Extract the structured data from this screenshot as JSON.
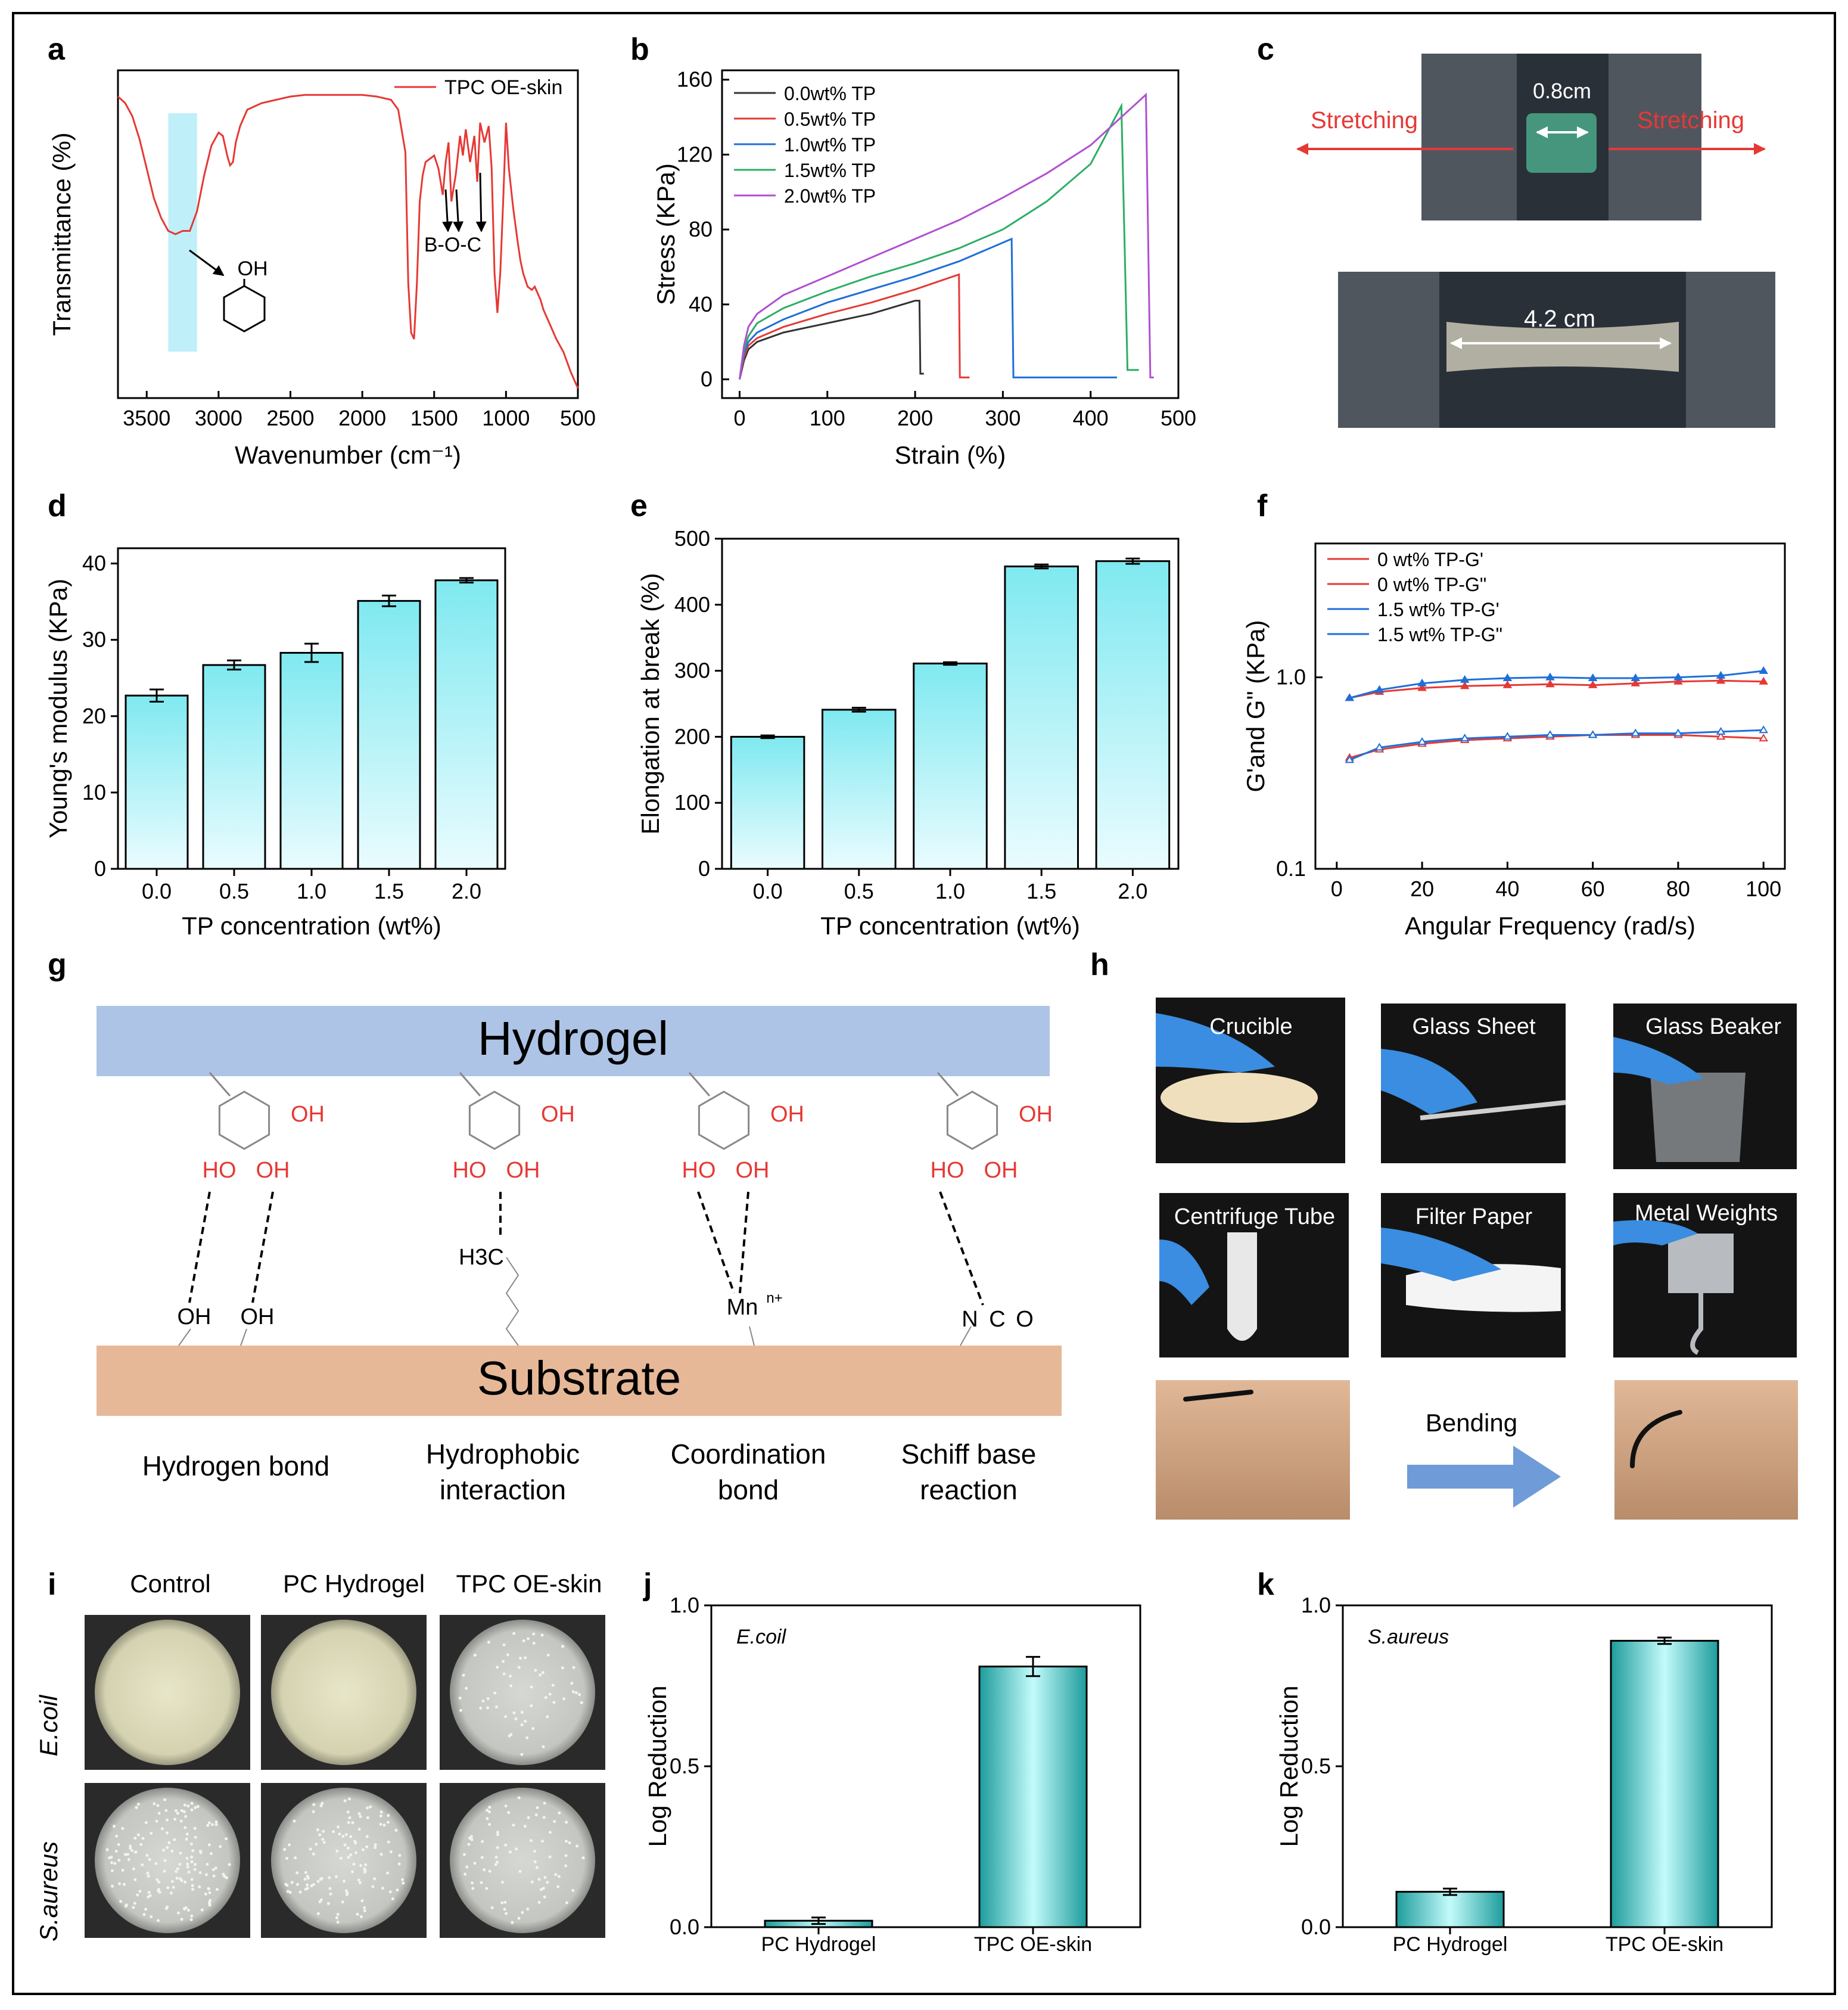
{
  "panel_labels": [
    "a",
    "b",
    "c",
    "d",
    "e",
    "f",
    "g",
    "h",
    "i",
    "j",
    "k"
  ],
  "colors": {
    "red": "#e53935",
    "black": "#333333",
    "blue": "#1e6fd9",
    "green": "#2bae66",
    "purple": "#b04fd0",
    "cyan_light": "#e6fbff",
    "cyan_dark": "#7fe9f0",
    "shade": "#bfeff8",
    "hydrogel": "#aec4e6",
    "substrate": "#e7b898",
    "teal_light": "#b9f7f7",
    "teal_dark": "#1e9c9c",
    "arrow": "#6f9bd8"
  },
  "chart_data": [
    {
      "id": "a",
      "type": "line",
      "xlabel": "Wavenumber (cm⁻¹)",
      "ylabel": "Transmittance (%)",
      "xlim": [
        3700,
        500
      ],
      "xticks": [
        "3500",
        "3000",
        "2500",
        "2000",
        "1500",
        "1000",
        "500"
      ],
      "legend": "TPC OE-skin",
      "series": [
        {
          "name": "TPC OE-skin",
          "x": [
            3700,
            3650,
            3600,
            3550,
            3500,
            3450,
            3400,
            3350,
            3300,
            3250,
            3200,
            3150,
            3100,
            3050,
            3000,
            2970,
            2940,
            2920,
            2900,
            2880,
            2850,
            2800,
            2700,
            2600,
            2500,
            2400,
            2300,
            2200,
            2100,
            2000,
            1900,
            1800,
            1750,
            1700,
            1680,
            1660,
            1640,
            1620,
            1600,
            1580,
            1560,
            1500,
            1470,
            1440,
            1420,
            1400,
            1380,
            1350,
            1320,
            1300,
            1280,
            1250,
            1220,
            1200,
            1180,
            1150,
            1120,
            1100,
            1080,
            1060,
            1040,
            1020,
            1000,
            980,
            950,
            920,
            900,
            880,
            850,
            820,
            800,
            780,
            760,
            740,
            700,
            650,
            600,
            550,
            500
          ],
          "y": [
            92,
            90,
            86,
            79,
            70,
            61,
            55,
            51,
            50,
            51,
            51,
            57,
            68,
            77,
            81,
            80,
            74,
            71,
            72,
            78,
            83,
            88,
            90,
            91,
            92,
            92.5,
            92.5,
            92.5,
            92.5,
            92.5,
            92,
            91,
            88,
            75,
            35,
            20,
            18,
            35,
            60,
            68,
            72,
            74,
            70,
            62,
            72,
            78,
            60,
            68,
            80,
            74,
            82,
            72,
            80,
            66,
            84,
            78,
            83,
            70,
            38,
            26,
            38,
            60,
            84,
            70,
            58,
            48,
            42,
            38,
            34,
            33,
            34,
            32,
            30,
            27,
            23,
            18,
            14,
            8,
            3
          ]
        }
      ],
      "annotations": [
        "OH",
        "B-O-C"
      ],
      "shaded_band": [
        3350,
        3150
      ]
    },
    {
      "id": "b",
      "type": "line",
      "xlabel": "Strain (%)",
      "ylabel": "Stress (KPa)",
      "xlim": [
        -20,
        500
      ],
      "ylim": [
        -10,
        165
      ],
      "xticks": [
        "0",
        "100",
        "200",
        "300",
        "400",
        "500"
      ],
      "yticks": [
        "0",
        "40",
        "80",
        "120",
        "160"
      ],
      "series": [
        {
          "name": "0.0wt% TP",
          "x": [
            0,
            5,
            10,
            20,
            50,
            100,
            150,
            200,
            205,
            206,
            210
          ],
          "y": [
            0,
            10,
            16,
            20,
            25,
            30,
            35,
            42,
            42,
            3,
            3
          ]
        },
        {
          "name": "0.5wt% TP",
          "x": [
            0,
            5,
            10,
            20,
            50,
            100,
            150,
            200,
            250,
            251,
            262
          ],
          "y": [
            0,
            12,
            18,
            22,
            28,
            35,
            41,
            48,
            56,
            1,
            1
          ]
        },
        {
          "name": "1.0wt% TP",
          "x": [
            0,
            5,
            10,
            20,
            50,
            100,
            150,
            200,
            250,
            310,
            312,
            430
          ],
          "y": [
            0,
            14,
            20,
            25,
            32,
            41,
            48,
            55,
            63,
            75,
            1,
            1
          ]
        },
        {
          "name": "1.5wt% TP",
          "x": [
            0,
            5,
            10,
            20,
            50,
            100,
            150,
            200,
            250,
            300,
            350,
            400,
            435,
            442,
            455
          ],
          "y": [
            0,
            16,
            23,
            30,
            38,
            47,
            55,
            62,
            70,
            80,
            95,
            115,
            146,
            5,
            5
          ]
        },
        {
          "name": "2.0wt% TP",
          "x": [
            0,
            5,
            10,
            20,
            50,
            100,
            150,
            200,
            250,
            300,
            350,
            400,
            463,
            468,
            472
          ],
          "y": [
            0,
            18,
            28,
            35,
            45,
            55,
            65,
            75,
            85,
            97,
            110,
            125,
            152,
            1,
            1
          ]
        }
      ]
    },
    {
      "id": "d",
      "type": "bar",
      "xlabel": "TP concentration (wt%)",
      "ylabel": "Young's modulus (KPa)",
      "categories": [
        "0.0",
        "0.5",
        "1.0",
        "1.5",
        "2.0"
      ],
      "values": [
        22.7,
        26.7,
        28.3,
        35.1,
        37.8
      ],
      "errors": [
        0.8,
        0.6,
        1.2,
        0.7,
        0.3
      ],
      "ylim": [
        0,
        42
      ],
      "yticks": [
        "0",
        "10",
        "20",
        "30",
        "40"
      ]
    },
    {
      "id": "e",
      "type": "bar",
      "xlabel": "TP concentration (wt%)",
      "ylabel": "Elongation at break (%)",
      "categories": [
        "0.0",
        "0.5",
        "1.0",
        "1.5",
        "2.0"
      ],
      "values": [
        200,
        241,
        311,
        458,
        466
      ],
      "errors": [
        2,
        3,
        2,
        3,
        4
      ],
      "ylim": [
        0,
        500
      ],
      "yticks": [
        "0",
        "100",
        "200",
        "300",
        "400",
        "500"
      ]
    },
    {
      "id": "f",
      "type": "line",
      "xlabel": "Angular Frequency (rad/s)",
      "ylabel": "G'and G\" (KPa)",
      "xlim": [
        -5,
        105
      ],
      "yscale": "log",
      "ylim": [
        0.1,
        5
      ],
      "xticks": [
        "0",
        "20",
        "40",
        "60",
        "80",
        "100"
      ],
      "yticks": [
        "0.1",
        "1.0"
      ],
      "series": [
        {
          "name": "0 wt% TP-G'",
          "x": [
            3,
            10,
            20,
            30,
            40,
            50,
            60,
            70,
            80,
            90,
            100
          ],
          "y": [
            0.78,
            0.84,
            0.88,
            0.9,
            0.91,
            0.92,
            0.91,
            0.93,
            0.95,
            0.96,
            0.95
          ]
        },
        {
          "name": "0 wt% TP-G\"",
          "x": [
            3,
            10,
            20,
            30,
            40,
            50,
            60,
            70,
            80,
            90,
            100
          ],
          "y": [
            0.38,
            0.42,
            0.45,
            0.47,
            0.48,
            0.49,
            0.5,
            0.5,
            0.5,
            0.49,
            0.48
          ]
        },
        {
          "name": "1.5 wt% TP-G'",
          "x": [
            3,
            10,
            20,
            30,
            40,
            50,
            60,
            70,
            80,
            90,
            100
          ],
          "y": [
            0.78,
            0.86,
            0.93,
            0.97,
            0.99,
            1.0,
            0.99,
            0.99,
            1.0,
            1.02,
            1.08
          ]
        },
        {
          "name": "1.5 wt% TP-G\"",
          "x": [
            3,
            10,
            20,
            30,
            40,
            50,
            60,
            70,
            80,
            90,
            100
          ],
          "y": [
            0.37,
            0.43,
            0.46,
            0.48,
            0.49,
            0.5,
            0.5,
            0.51,
            0.51,
            0.52,
            0.53
          ]
        }
      ]
    },
    {
      "id": "j",
      "type": "bar",
      "title": "E.coil",
      "ylabel": "Log Reduction",
      "categories": [
        "PC Hydrogel",
        "TPC OE-skin"
      ],
      "values": [
        0.02,
        0.81
      ],
      "errors": [
        0.01,
        0.03
      ],
      "ylim": [
        0,
        1.0
      ],
      "yticks": [
        "0.0",
        "0.5",
        "1.0"
      ]
    },
    {
      "id": "k",
      "type": "bar",
      "title": "S.aureus",
      "ylabel": "Log Reduction",
      "categories": [
        "PC Hydrogel",
        "TPC OE-skin"
      ],
      "values": [
        0.11,
        0.89
      ],
      "errors": [
        0.01,
        0.01
      ],
      "ylim": [
        0,
        1.0
      ],
      "yticks": [
        "0.0",
        "0.5",
        "1.0"
      ]
    }
  ],
  "panel_c": {
    "stretching_left": "Stretching",
    "length_short": "0.8cm",
    "stretching_right": "Stretching",
    "length_long": "4.2 cm"
  },
  "panel_g": {
    "hydrogel": "Hydrogel",
    "substrate": "Substrate",
    "oh": "OH",
    "ho": "HO",
    "partners": [
      "OH",
      "OH",
      "H3C",
      "Mn",
      "n+",
      "N",
      "C",
      "O"
    ],
    "captions": [
      "Hydrogen bond",
      "Hydrophobic",
      "interaction",
      "Coordination",
      "bond",
      "Schiff base",
      "reaction"
    ]
  },
  "panel_h": {
    "photos": [
      "Crucible",
      "Glass Sheet",
      "Glass Beaker",
      "Centrifuge Tube",
      "Filter Paper",
      "Metal Weights"
    ],
    "bending": "Bending"
  },
  "panel_i": {
    "columns": [
      "Control",
      "PC Hydrogel",
      "TPC OE-skin"
    ],
    "rows": [
      "E.coil",
      "S.aureus"
    ]
  }
}
